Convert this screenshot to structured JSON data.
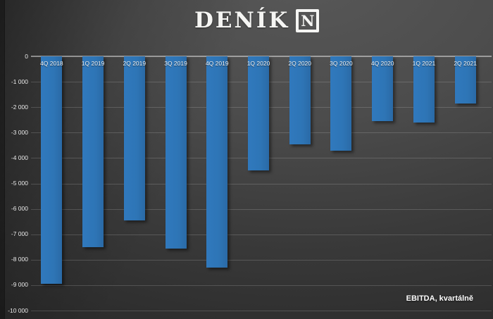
{
  "logo": {
    "text": "DENÍK",
    "badge": "N"
  },
  "footer_note": "EBITDA, kvartálně",
  "colors": {
    "bar": "#2e75b6",
    "background_dark": "#222222",
    "background_light": "#585858",
    "text": "#f2f2f2"
  },
  "chart_data": {
    "type": "bar",
    "title": "",
    "xlabel": "",
    "ylabel": "",
    "annotation": "EBITDA, kvartálně",
    "categories": [
      "4Q 2018",
      "1Q 2019",
      "2Q 2019",
      "3Q 2019",
      "4Q 2019",
      "1Q 2020",
      "2Q 2020",
      "3Q 2020",
      "4Q 2020",
      "1Q 2021",
      "2Q 2021"
    ],
    "values": [
      -8950,
      -7500,
      -6450,
      -7550,
      -8300,
      -4500,
      -3450,
      -3700,
      -2550,
      -2600,
      -1850
    ],
    "ylim": [
      -10000,
      0
    ],
    "y_tick_values": [
      0,
      -1000,
      -2000,
      -3000,
      -4000,
      -5000,
      -6000,
      -7000,
      -8000,
      -9000,
      -10000
    ],
    "y_tick_labels": [
      "0",
      "-1 000",
      "-2 000",
      "-3 000",
      "-4 000",
      "-5 000",
      "-6 000",
      "-7 000",
      "-8 000",
      "-9 000",
      "-10 000"
    ],
    "grid": true,
    "legend": false,
    "bar_labels_position": "inside-top"
  }
}
